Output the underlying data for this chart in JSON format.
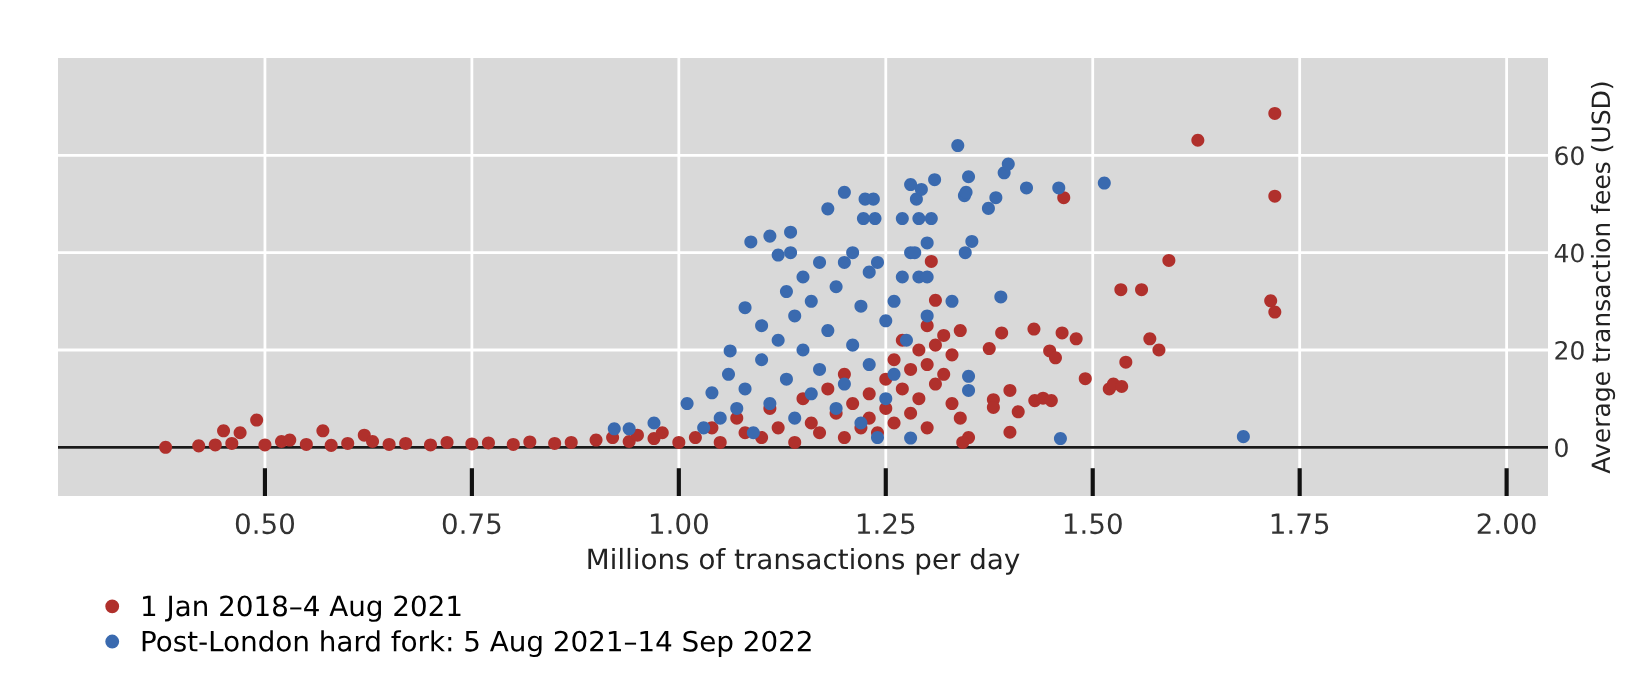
{
  "chart_data": {
    "type": "scatter",
    "xlabel": "Millions of transactions per day",
    "ylabel": "Average transaction fees (USD)",
    "xlim": [
      0.25,
      2.05
    ],
    "xticks": [
      {
        "value": 0.5,
        "label": "0.50"
      },
      {
        "value": 0.75,
        "label": "0.75"
      },
      {
        "value": 1.0,
        "label": "1.00"
      },
      {
        "value": 1.25,
        "label": "1.25"
      },
      {
        "value": 1.5,
        "label": "1.50"
      },
      {
        "value": 1.75,
        "label": "1.75"
      },
      {
        "value": 2.0,
        "label": "2.00"
      }
    ],
    "ylim": [
      -10,
      80
    ],
    "yticks": [
      0,
      20,
      40,
      60
    ],
    "grid": true,
    "legend": "bottom left",
    "marker": "circle",
    "ref_lines": [
      {
        "axis": "y",
        "value": 0,
        "color": "#1a1a1a"
      }
    ],
    "series": [
      {
        "name": "1 Jan 2018–4 Aug 2021",
        "color": "#b0302c",
        "x": [
          0.38,
          0.42,
          0.44,
          0.45,
          0.46,
          0.47,
          0.49,
          0.5,
          0.52,
          0.53,
          0.55,
          0.57,
          0.58,
          0.6,
          0.62,
          0.63,
          0.65,
          0.67,
          0.7,
          0.72,
          0.75,
          0.77,
          0.8,
          0.82,
          0.85,
          0.87,
          0.9,
          0.92,
          0.94,
          0.95,
          0.97,
          0.98,
          1.0,
          1.02,
          1.04,
          1.05,
          1.07,
          1.08,
          1.1,
          1.11,
          1.12,
          1.14,
          1.15,
          1.16,
          1.17,
          1.18,
          1.19,
          1.2,
          1.2,
          1.21,
          1.22,
          1.23,
          1.23,
          1.24,
          1.25,
          1.25,
          1.26,
          1.26,
          1.27,
          1.27,
          1.28,
          1.28,
          1.29,
          1.29,
          1.3,
          1.3,
          1.3,
          1.31,
          1.31,
          1.32,
          1.32,
          1.33,
          1.33,
          1.34,
          1.34,
          1.35,
          1.305,
          1.31,
          1.343,
          1.375,
          1.38,
          1.38,
          1.39,
          1.4,
          1.4,
          1.41,
          1.43,
          1.44,
          1.45,
          1.448,
          1.455,
          1.429,
          1.463,
          1.48,
          1.465,
          1.491,
          1.52,
          1.525,
          1.535,
          1.54,
          1.534,
          1.559,
          1.569,
          1.58,
          1.592,
          1.627,
          1.715,
          1.72,
          1.72,
          1.72
        ],
        "values": [
          0,
          0.3,
          0.5,
          3.4,
          0.8,
          3,
          5.6,
          0.5,
          1.2,
          1.5,
          0.6,
          3.4,
          0.4,
          0.8,
          2.5,
          1.2,
          0.6,
          0.8,
          0.5,
          1,
          0.7,
          0.9,
          0.6,
          1.1,
          0.8,
          1,
          1.5,
          2,
          1.2,
          2.5,
          1.8,
          3,
          1,
          2,
          4,
          1,
          6,
          3,
          2,
          8,
          4,
          1,
          10,
          5,
          3,
          12,
          7,
          2,
          15,
          9,
          4,
          11,
          6,
          3,
          14,
          8,
          18,
          5,
          22,
          12,
          7,
          16,
          20,
          10,
          25,
          17,
          4,
          21,
          13,
          23,
          15,
          19,
          9,
          24,
          6,
          2,
          38.2,
          30.2,
          1,
          20.3,
          9.8,
          8.2,
          23.5,
          11.7,
          3.1,
          7.3,
          9.6,
          10.1,
          9.6,
          19.8,
          18.4,
          24.3,
          23.5,
          22.3,
          51.3,
          14.1,
          12,
          13,
          12.5,
          17.5,
          32.4,
          32.4,
          22.3,
          20,
          38.4,
          63.1,
          30.1,
          27.8,
          51.6,
          68.6
        ]
      },
      {
        "name": "Post-London hard fork: 5 Aug 2021–14 Sep 2022",
        "color": "#3a6aaf",
        "x": [
          0.922,
          0.94,
          0.97,
          1.01,
          1.03,
          1.04,
          1.05,
          1.06,
          1.062,
          1.07,
          1.08,
          1.08,
          1.087,
          1.09,
          1.1,
          1.1,
          1.11,
          1.11,
          1.12,
          1.12,
          1.13,
          1.13,
          1.135,
          1.135,
          1.14,
          1.14,
          1.15,
          1.15,
          1.16,
          1.16,
          1.17,
          1.17,
          1.18,
          1.18,
          1.19,
          1.19,
          1.2,
          1.2,
          1.2,
          1.21,
          1.21,
          1.22,
          1.22,
          1.223,
          1.225,
          1.23,
          1.23,
          1.235,
          1.237,
          1.24,
          1.24,
          1.25,
          1.25,
          1.26,
          1.26,
          1.27,
          1.27,
          1.275,
          1.28,
          1.28,
          1.28,
          1.285,
          1.287,
          1.29,
          1.29,
          1.293,
          1.3,
          1.3,
          1.3,
          1.305,
          1.309,
          1.33,
          1.337,
          1.345,
          1.346,
          1.347,
          1.35,
          1.35,
          1.35,
          1.354,
          1.374,
          1.383,
          1.389,
          1.393,
          1.398,
          1.42,
          1.459,
          1.461,
          1.514,
          1.682
        ],
        "values": [
          3.8,
          3.8,
          5,
          9,
          4,
          11.2,
          6,
          15,
          19.8,
          8,
          28.7,
          12,
          42.2,
          3,
          18,
          25,
          43.4,
          9,
          39.5,
          22,
          14,
          32,
          44.2,
          40,
          6,
          27,
          20,
          35,
          11,
          30,
          16,
          38,
          49,
          24,
          8,
          33,
          52.4,
          38,
          13,
          40,
          21,
          29,
          5,
          47,
          51,
          36,
          17,
          51,
          47,
          38,
          2,
          26,
          10,
          30,
          15,
          47,
          35,
          22,
          54,
          40,
          1.9,
          40,
          51,
          47,
          35,
          53,
          42,
          35,
          27,
          47,
          55,
          30,
          62,
          51.7,
          40,
          52.4,
          55.6,
          11.7,
          14.6,
          42.3,
          49.1,
          51.3,
          30.9,
          56.4,
          58.2,
          53.3,
          53.3,
          1.8,
          54.3,
          2.2
        ]
      }
    ]
  }
}
